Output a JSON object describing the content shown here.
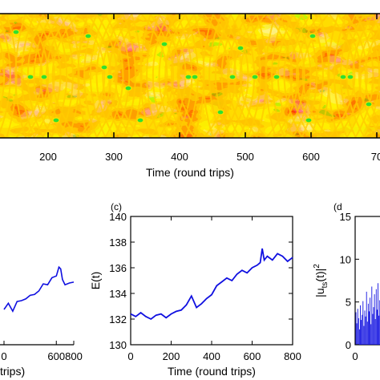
{
  "colors": {
    "line": "#1010e0",
    "heat_low": "#e81000",
    "heat_mid": "#ffd200",
    "heat_high": "#30e030",
    "axis": "#000000"
  },
  "chart_data": [
    {
      "type": "heatmap",
      "xlabel": "Time (round trips)",
      "xticks": [
        200,
        300,
        400,
        500,
        600,
        "70"
      ],
      "colormap": [
        "red",
        "yellow",
        "green"
      ]
    },
    {
      "type": "line",
      "panel_label": "",
      "xlabel": "",
      "xlabel_visible": "trips)",
      "xticks": [
        "0",
        "600",
        "800"
      ],
      "x": [
        0,
        50,
        100,
        150,
        200,
        250,
        300,
        350,
        400,
        450,
        500,
        550,
        600,
        630,
        650,
        670,
        700,
        750,
        800
      ],
      "values": [
        0.42,
        0.45,
        0.4,
        0.47,
        0.52,
        0.5,
        0.58,
        0.55,
        0.63,
        0.67,
        0.7,
        0.74,
        0.8,
        0.86,
        0.88,
        0.72,
        0.7,
        0.68,
        0.73
      ]
    },
    {
      "type": "line",
      "panel_label": "(c)",
      "xlabel": "Time (round trips)",
      "ylabel": "E(t)",
      "xlim": [
        0,
        800
      ],
      "ylim": [
        130,
        140
      ],
      "xticks": [
        0,
        200,
        400,
        600,
        800
      ],
      "yticks": [
        130,
        132,
        134,
        136,
        138,
        140
      ],
      "x": [
        0,
        25,
        50,
        75,
        100,
        125,
        150,
        175,
        200,
        225,
        250,
        275,
        300,
        325,
        350,
        375,
        400,
        425,
        450,
        475,
        500,
        525,
        550,
        575,
        600,
        625,
        640,
        650,
        660,
        675,
        700,
        725,
        750,
        775,
        800
      ],
      "y": [
        132.4,
        132.2,
        132.5,
        132.2,
        132.0,
        132.3,
        132.4,
        132.1,
        132.4,
        132.6,
        132.7,
        133.1,
        133.8,
        132.9,
        133.2,
        133.6,
        133.9,
        134.6,
        134.9,
        135.2,
        135.0,
        135.5,
        135.8,
        135.6,
        136.0,
        136.2,
        136.4,
        137.5,
        136.6,
        136.9,
        136.6,
        137.1,
        136.9,
        136.5,
        136.8
      ]
    },
    {
      "type": "bar",
      "panel_label": "(d",
      "ylabel": "|u_ts(t)|^2",
      "ylim": [
        0,
        15
      ],
      "yticks": [
        0,
        5,
        10,
        15
      ],
      "xticks": [
        0
      ]
    }
  ]
}
